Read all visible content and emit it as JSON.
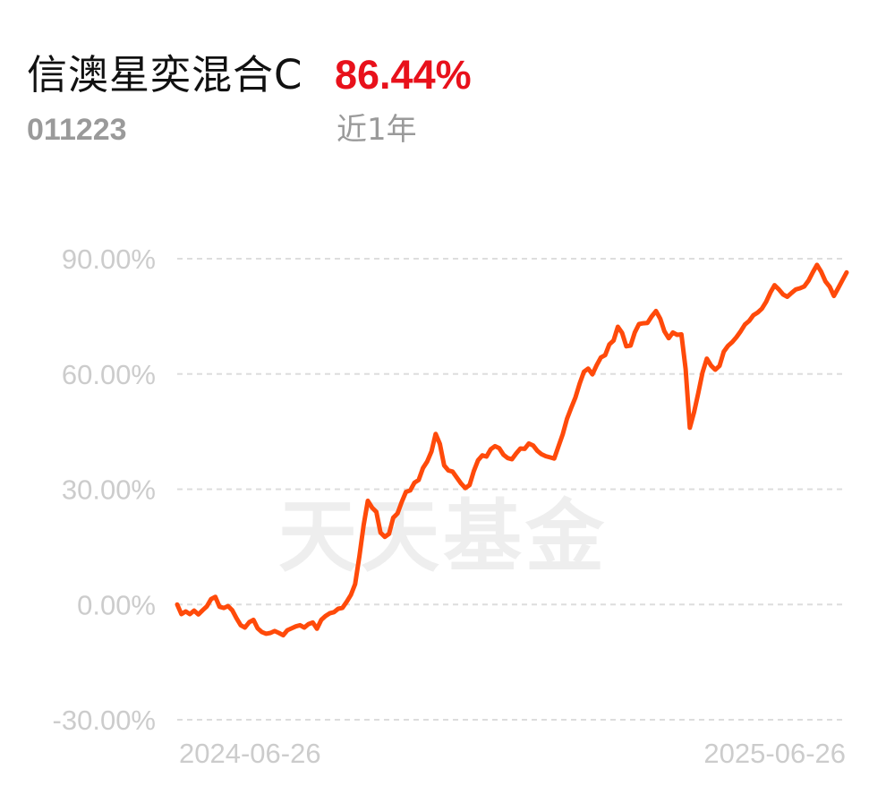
{
  "header": {
    "fund_name": "信澳星奕混合C",
    "return_value": "86.44%",
    "fund_code": "011223",
    "period_label": "近1年"
  },
  "watermark": "天天基金",
  "colors": {
    "line": "#ff4a0a",
    "return": "#e8111b",
    "grid": "#dddddd",
    "axis_text": "#cccccc",
    "muted_text": "#9a9a9a",
    "watermark": "#eeeeee"
  },
  "chart_data": {
    "type": "line",
    "title": "",
    "xlabel": "",
    "ylabel": "",
    "y_ticks": [
      90,
      60,
      30,
      0,
      -30
    ],
    "y_tick_labels": [
      "90.00%",
      "60.00%",
      "30.00%",
      "0.00%",
      "-30.00%"
    ],
    "ylim": [
      -30,
      90
    ],
    "x_tick_labels": [
      "2024-06-26",
      "2025-06-26"
    ],
    "xlim": [
      "2024-06-26",
      "2025-06-26"
    ],
    "grid": true,
    "series": [
      {
        "values": [
          0.0,
          -2.5,
          -1.8,
          -2.5,
          -1.6,
          -2.6,
          -1.5,
          -0.5,
          1.4,
          2.0,
          -0.6,
          -0.9,
          -0.4,
          -1.5,
          -3.6,
          -5.4,
          -6.0,
          -4.6,
          -4.0,
          -6.2,
          -7.2,
          -7.6,
          -7.4,
          -6.9,
          -7.4,
          -8.0,
          -6.7,
          -6.2,
          -5.7,
          -5.4,
          -6.0,
          -5.1,
          -4.7,
          -6.3,
          -4.0,
          -3.0,
          -2.3,
          -2.0,
          -1.1,
          -0.9,
          0.7,
          2.5,
          5.3,
          12.6,
          20.6,
          27.0,
          25.2,
          24.1,
          18.7,
          17.6,
          18.4,
          22.6,
          23.7,
          26.7,
          29.3,
          29.7,
          31.7,
          32.4,
          35.5,
          37.2,
          39.8,
          44.4,
          41.8,
          36.2,
          34.9,
          34.6,
          33.0,
          31.5,
          30.3,
          31.1,
          34.7,
          37.5,
          38.8,
          38.5,
          40.4,
          41.2,
          40.7,
          39.0,
          38.1,
          37.8,
          39.3,
          40.6,
          40.5,
          41.9,
          41.4,
          40.0,
          39.1,
          38.6,
          38.3,
          38.0,
          41.2,
          44.3,
          48.3,
          51.2,
          53.9,
          57.5,
          60.6,
          61.4,
          59.9,
          62.3,
          64.3,
          64.9,
          67.7,
          68.7,
          72.3,
          70.7,
          67.2,
          67.4,
          70.8,
          73.0,
          73.2,
          73.3,
          75.0,
          76.4,
          74.4,
          71.1,
          69.3,
          70.8,
          70.2,
          70.3,
          61.3,
          46.0,
          50.1,
          55.1,
          60.4,
          64.0,
          62.2,
          61.1,
          62.1,
          65.8,
          67.3,
          68.3,
          69.6,
          71.1,
          72.9,
          73.8,
          75.3,
          76.0,
          77.0,
          78.8,
          81.2,
          83.1,
          82.0,
          80.7,
          80.1,
          81.1,
          82.0,
          82.3,
          82.8,
          84.3,
          86.4,
          88.4,
          86.6,
          84.1,
          82.7,
          80.3,
          82.3,
          84.4,
          86.44
        ]
      }
    ]
  }
}
